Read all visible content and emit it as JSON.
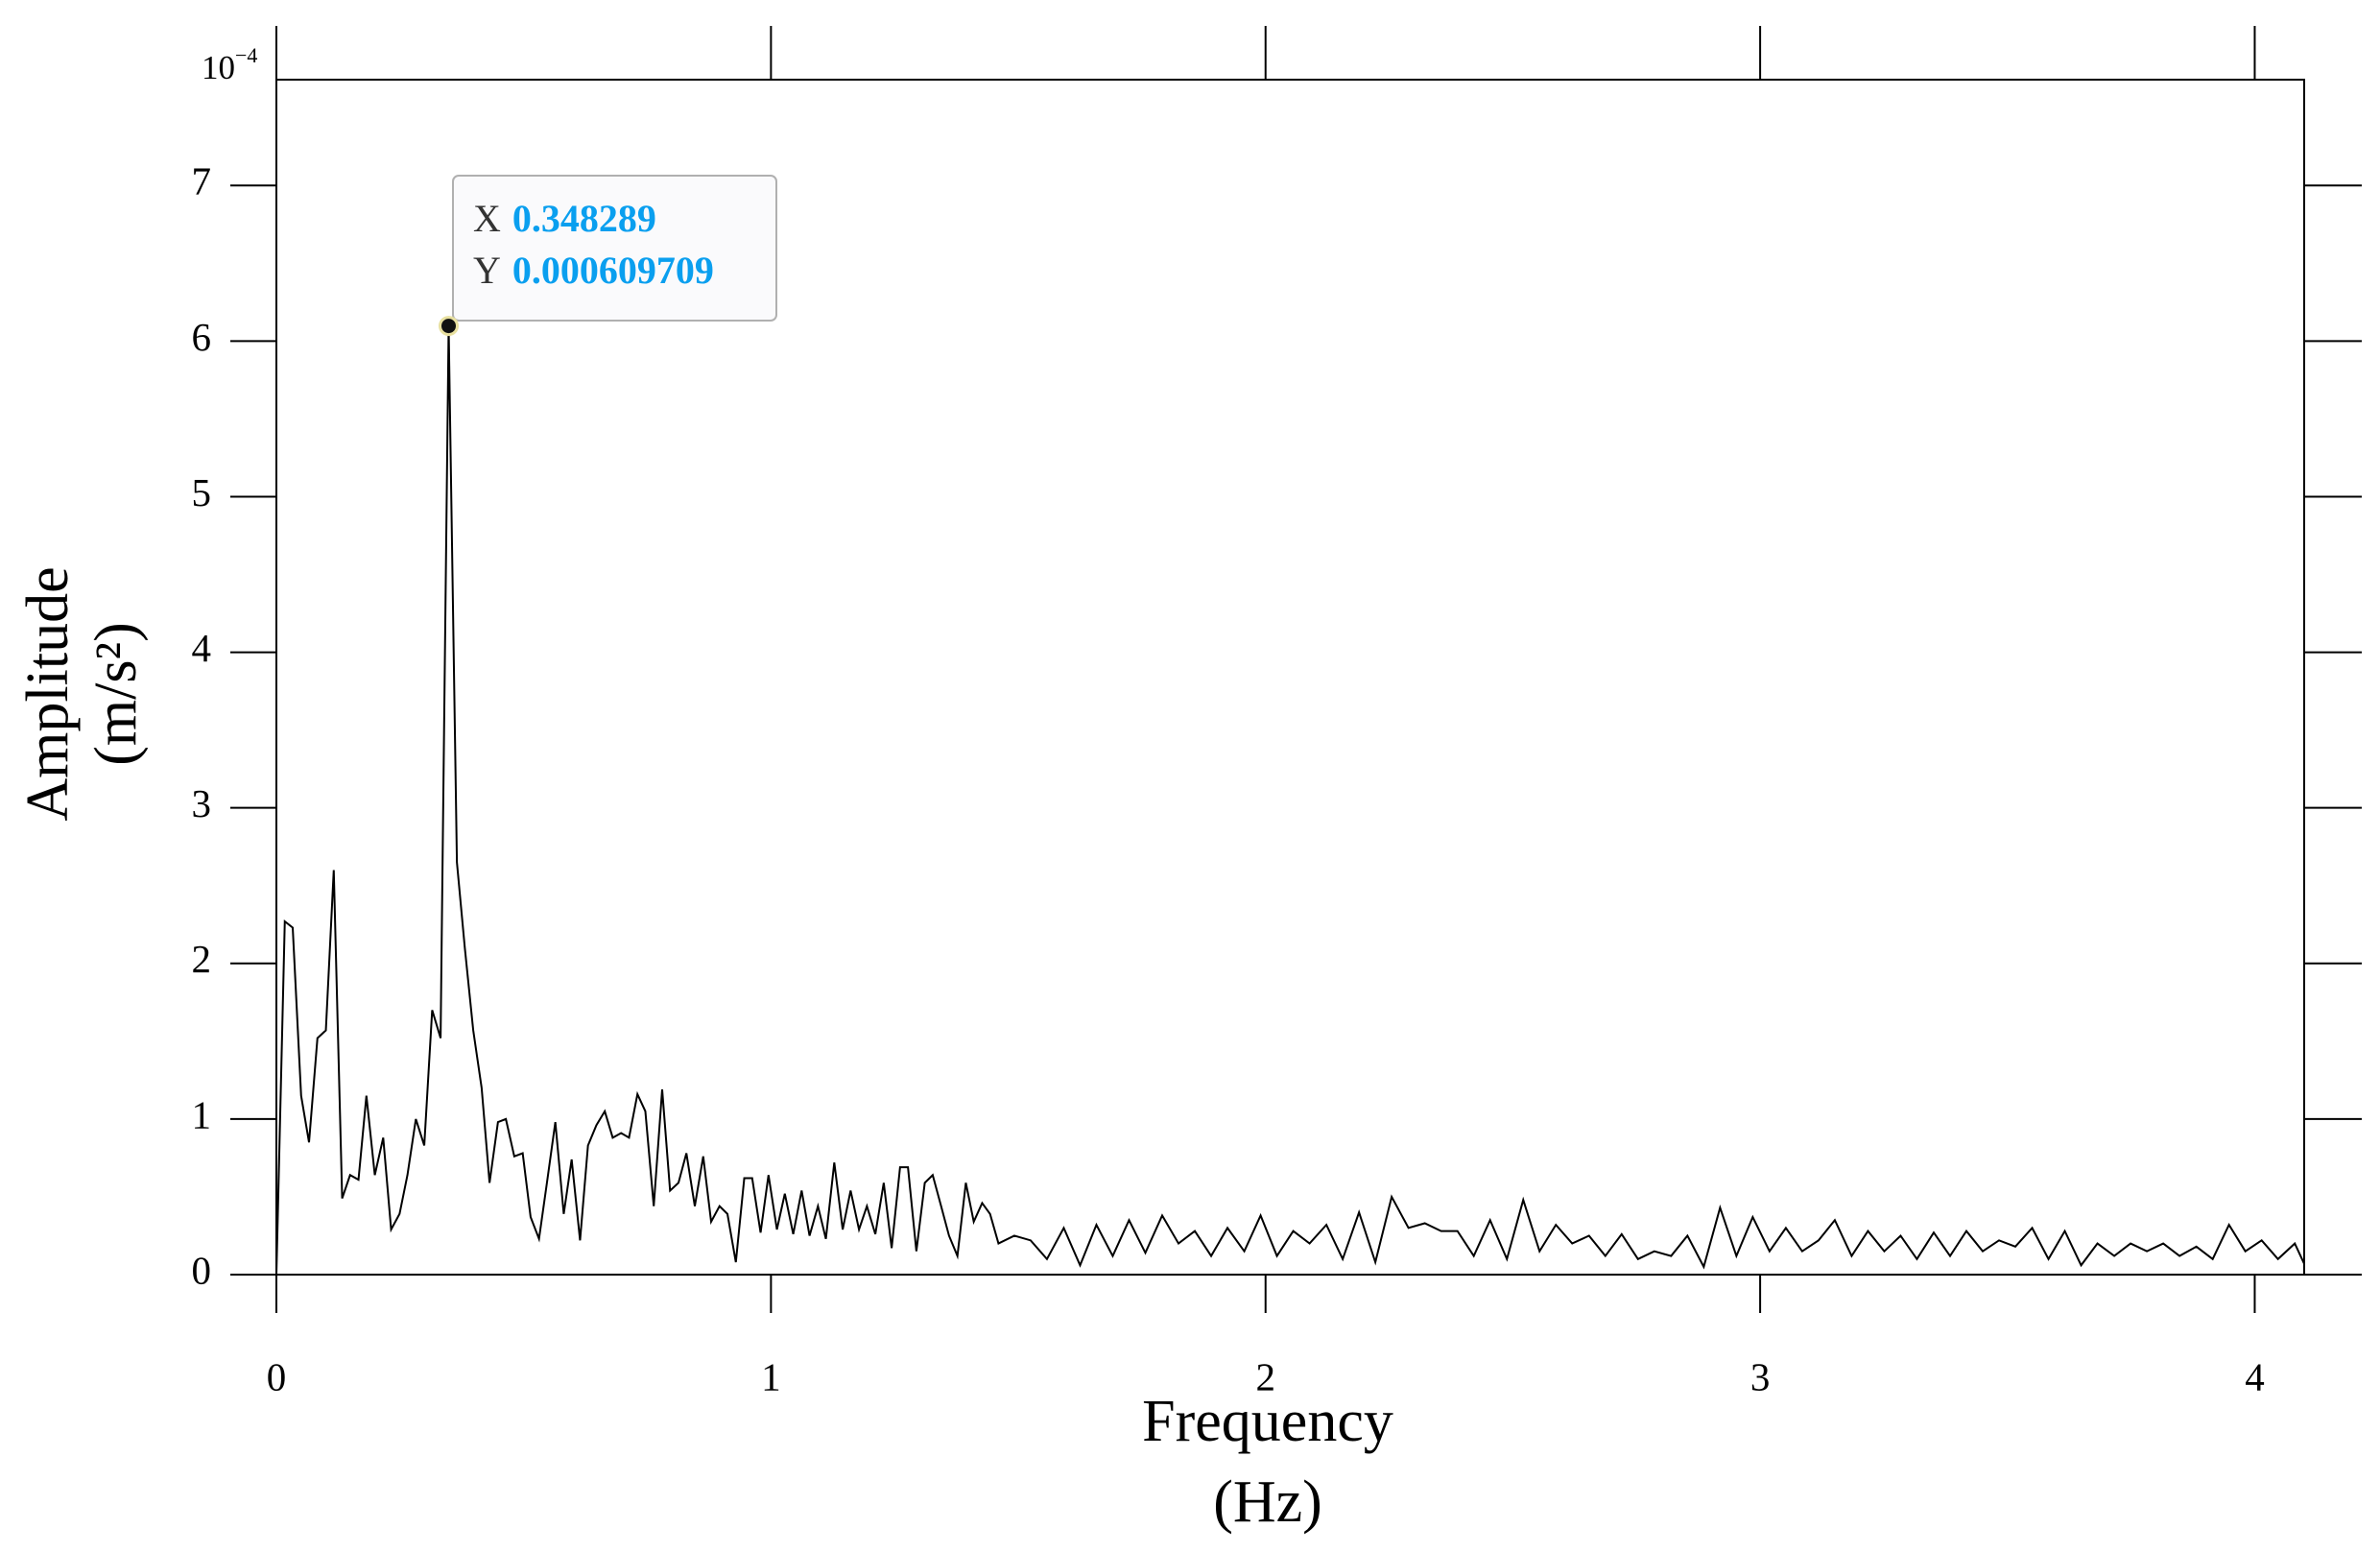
{
  "chart_data": {
    "type": "line",
    "xlabel": [
      "Frequency",
      "(Hz)"
    ],
    "ylabel": [
      "Amplitude",
      "(m/s²)"
    ],
    "y_exponent": {
      "base": "10",
      "power": "−4"
    },
    "color": "#000000",
    "xlim": [
      0,
      4.1
    ],
    "ylim": [
      0,
      7.68
    ],
    "xticks": [
      0,
      1,
      2,
      3,
      4
    ],
    "yticks": [
      0,
      1,
      2,
      3,
      4,
      5,
      6,
      7
    ],
    "grid": false,
    "datatip": {
      "x_label": "X",
      "x_value": 0.348289,
      "y_label": "Y",
      "y_value": 0.000609709
    },
    "x": [
      0,
      0.017,
      0.033,
      0.05,
      0.066,
      0.083,
      0.1,
      0.116,
      0.133,
      0.149,
      0.166,
      0.182,
      0.199,
      0.216,
      0.232,
      0.249,
      0.265,
      0.282,
      0.299,
      0.315,
      0.332,
      0.348289,
      0.365,
      0.381,
      0.398,
      0.415,
      0.431,
      0.448,
      0.464,
      0.481,
      0.498,
      0.514,
      0.531,
      0.547,
      0.564,
      0.581,
      0.597,
      0.614,
      0.63,
      0.647,
      0.664,
      0.68,
      0.697,
      0.713,
      0.73,
      0.746,
      0.763,
      0.78,
      0.796,
      0.813,
      0.829,
      0.846,
      0.863,
      0.879,
      0.896,
      0.912,
      0.929,
      0.946,
      0.962,
      0.979,
      0.995,
      1.012,
      1.028,
      1.045,
      1.062,
      1.078,
      1.095,
      1.111,
      1.128,
      1.145,
      1.161,
      1.178,
      1.194,
      1.211,
      1.228,
      1.244,
      1.261,
      1.277,
      1.294,
      1.311,
      1.327,
      1.344,
      1.36,
      1.377,
      1.394,
      1.41,
      1.427,
      1.443,
      1.46,
      1.492,
      1.525,
      1.558,
      1.592,
      1.625,
      1.658,
      1.691,
      1.724,
      1.757,
      1.791,
      1.824,
      1.857,
      1.89,
      1.923,
      1.957,
      1.99,
      2.023,
      2.056,
      2.089,
      2.123,
      2.156,
      2.189,
      2.222,
      2.255,
      2.289,
      2.322,
      2.355,
      2.388,
      2.421,
      2.454,
      2.488,
      2.521,
      2.554,
      2.587,
      2.62,
      2.654,
      2.687,
      2.72,
      2.753,
      2.786,
      2.82,
      2.853,
      2.886,
      2.919,
      2.952,
      2.985,
      3.019,
      3.052,
      3.085,
      3.118,
      3.151,
      3.185,
      3.218,
      3.251,
      3.284,
      3.317,
      3.351,
      3.384,
      3.417,
      3.45,
      3.483,
      3.516,
      3.55,
      3.583,
      3.616,
      3.649,
      3.682,
      3.716,
      3.749,
      3.782,
      3.815,
      3.848,
      3.882,
      3.915,
      3.948,
      3.981,
      4.014,
      4.047,
      4.081,
      4.1
    ],
    "values": [
      0,
      2.27,
      2.23,
      1.15,
      0.85,
      1.52,
      1.57,
      2.6,
      0.49,
      0.64,
      0.61,
      1.15,
      0.64,
      0.88,
      0.29,
      0.39,
      0.64,
      1.0,
      0.83,
      1.7,
      1.52,
      6.09709,
      2.65,
      2.1,
      1.57,
      1.2,
      0.59,
      0.98,
      1.0,
      0.76,
      0.78,
      0.37,
      0.23,
      0.59,
      0.98,
      0.39,
      0.74,
      0.22,
      0.83,
      0.96,
      1.05,
      0.88,
      0.91,
      0.88,
      1.16,
      1.05,
      0.44,
      1.19,
      0.54,
      0.59,
      0.78,
      0.44,
      0.76,
      0.34,
      0.44,
      0.39,
      0.08,
      0.62,
      0.62,
      0.27,
      0.64,
      0.29,
      0.52,
      0.26,
      0.54,
      0.25,
      0.44,
      0.23,
      0.72,
      0.29,
      0.54,
      0.29,
      0.44,
      0.26,
      0.59,
      0.17,
      0.69,
      0.69,
      0.15,
      0.59,
      0.64,
      0.44,
      0.25,
      0.12,
      0.59,
      0.34,
      0.46,
      0.39,
      0.2,
      0.25,
      0.22,
      0.1,
      0.3,
      0.06,
      0.32,
      0.12,
      0.35,
      0.14,
      0.38,
      0.2,
      0.28,
      0.12,
      0.3,
      0.15,
      0.38,
      0.12,
      0.28,
      0.2,
      0.32,
      0.1,
      0.4,
      0.08,
      0.5,
      0.3,
      0.33,
      0.28,
      0.28,
      0.12,
      0.35,
      0.1,
      0.48,
      0.15,
      0.32,
      0.2,
      0.25,
      0.12,
      0.26,
      0.1,
      0.15,
      0.12,
      0.25,
      0.05,
      0.43,
      0.12,
      0.37,
      0.15,
      0.3,
      0.15,
      0.22,
      0.35,
      0.12,
      0.28,
      0.15,
      0.25,
      0.1,
      0.27,
      0.12,
      0.28,
      0.15,
      0.22,
      0.18,
      0.3,
      0.1,
      0.28,
      0.06,
      0.2,
      0.12,
      0.2,
      0.15,
      0.2,
      0.12,
      0.18,
      0.1,
      0.32,
      0.15,
      0.22,
      0.1,
      0.2,
      0.07
    ]
  }
}
